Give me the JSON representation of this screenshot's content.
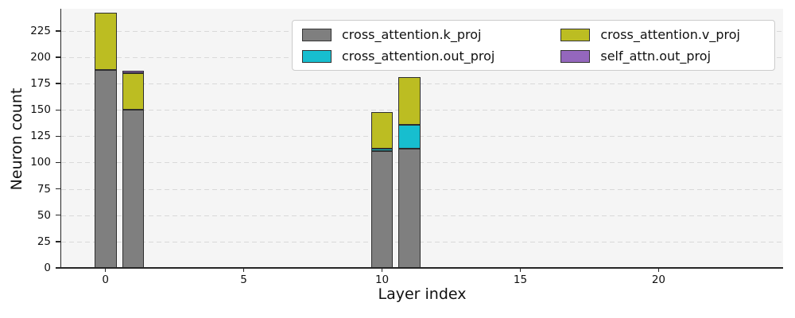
{
  "chart_data": {
    "type": "bar",
    "stacked": true,
    "title": "",
    "xlabel": "Layer index",
    "ylabel": "Neuron count",
    "x_ticks": [
      0,
      5,
      10,
      15,
      20
    ],
    "y_ticks": [
      0,
      25,
      50,
      75,
      100,
      125,
      150,
      175,
      200,
      225
    ],
    "xlim": [
      -1.6,
      24.5
    ],
    "ylim": [
      0,
      246
    ],
    "bar_width": 0.8,
    "grid": "horizontal-dashed",
    "categories": [
      0,
      1,
      10,
      11
    ],
    "series": [
      {
        "name": "cross_attention.k_proj",
        "color": "#7f7f7f",
        "values": [
          188,
          150,
          111,
          113
        ]
      },
      {
        "name": "cross_attention.out_proj",
        "color": "#17becf",
        "values": [
          0,
          0,
          2,
          23
        ]
      },
      {
        "name": "cross_attention.v_proj",
        "color": "#bcbd22",
        "values": [
          54,
          35,
          35,
          45
        ]
      },
      {
        "name": "self_attn.out_proj",
        "color": "#9467bd",
        "values": [
          0,
          2,
          0,
          0
        ]
      }
    ],
    "bar_totals": [
      242,
      187,
      148,
      181
    ],
    "legend": {
      "position": "upper right",
      "columns": 2
    }
  },
  "styles": {
    "figure_bg": "#ffffff",
    "plot_bg": "#f5f5f5",
    "grid_color": "#d9d9d9",
    "spine_color": "#262626",
    "bar_edge_color": "#2e2e2e",
    "legend_border": "#cccccc"
  }
}
